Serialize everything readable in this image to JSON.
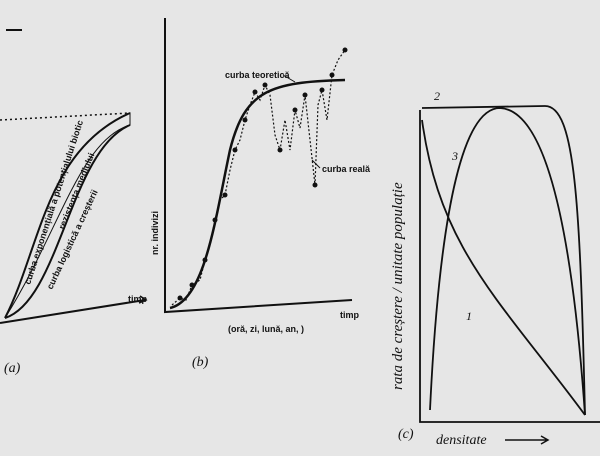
{
  "panels": [
    {
      "label": "(a)",
      "texts": [
        "curba exponențială a potențialului biotic",
        "rezistența mediului",
        "curba logistică a creșterii",
        "timp"
      ]
    },
    {
      "label": "(b)",
      "texts": [
        "curba teoretică",
        "curba reală",
        "nr. indivizi",
        "timp",
        "(oră, zi, lună, an, )"
      ]
    },
    {
      "label": "(c)",
      "texts": [
        "rata de creștere / unitate populație",
        "densitate",
        "1",
        "2",
        "3"
      ]
    }
  ]
}
